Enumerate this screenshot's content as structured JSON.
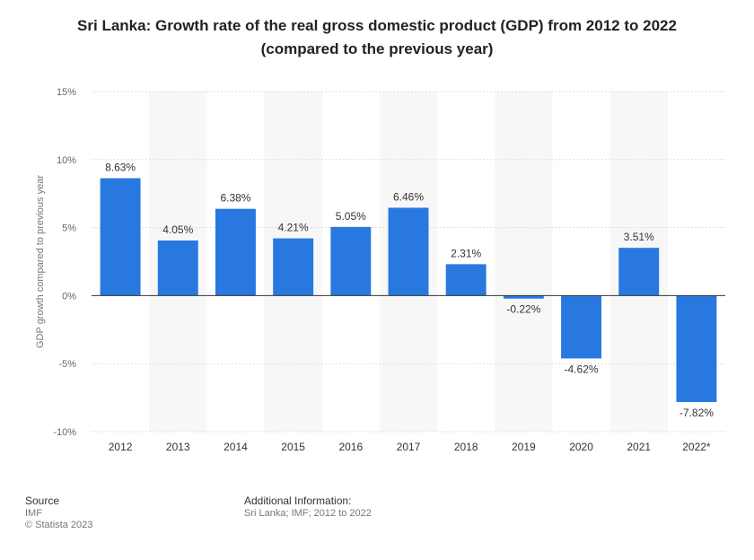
{
  "title_line1": "Sri Lanka: Growth rate of the real gross domestic product (GDP) from 2012 to 2022",
  "title_line2": "(compared to the previous year)",
  "footer": {
    "source_heading": "Source",
    "source_name": "IMF",
    "copyright": "© Statista 2023",
    "info_heading": "Additional Information:",
    "info_text": "Sri Lanka; IMF; 2012 to 2022"
  },
  "colors": {
    "bar": "#2878e0",
    "band": "#f7f7f7",
    "grid": "#dddddd",
    "zero_line": "#333333"
  },
  "chart_data": {
    "type": "bar",
    "categories": [
      "2012",
      "2013",
      "2014",
      "2015",
      "2016",
      "2017",
      "2018",
      "2019",
      "2020",
      "2021",
      "2022*"
    ],
    "values": [
      8.63,
      4.05,
      6.38,
      4.21,
      5.05,
      6.46,
      2.31,
      -0.22,
      -4.62,
      3.51,
      -7.82
    ],
    "data_labels": [
      "8.63%",
      "4.05%",
      "6.38%",
      "4.21%",
      "5.05%",
      "6.46%",
      "2.31%",
      "-0.22%",
      "-4.62%",
      "3.51%",
      "-7.82%"
    ],
    "ylabel": "GDP growth compared to previous year",
    "xlabel": "",
    "ylim": [
      -10,
      15
    ],
    "y_ticks": [
      15,
      10,
      5,
      0,
      -5,
      -10
    ],
    "y_tick_labels": [
      "15%",
      "10%",
      "5%",
      "0%",
      "-5%",
      "-10%"
    ],
    "grid": true,
    "legend": "none"
  }
}
